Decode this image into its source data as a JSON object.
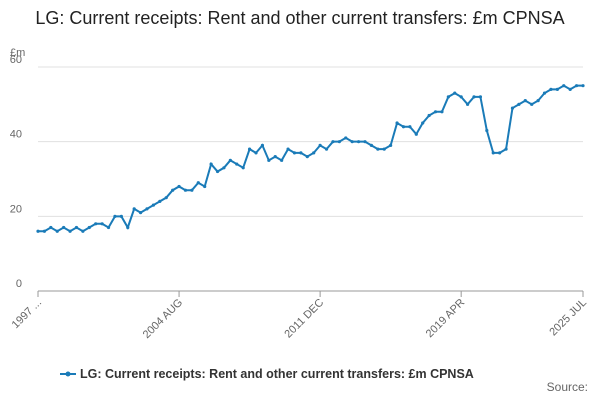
{
  "chart_data": {
    "type": "line",
    "title": "LG: Current receipts: Rent and other current transfers: £m CPNSA",
    "y_label": "£m",
    "source_label": "Source:",
    "categories": [
      "1997 ...",
      null,
      null,
      null,
      null,
      null,
      null,
      null,
      null,
      null,
      null,
      null,
      null,
      null,
      null,
      null,
      null,
      null,
      null,
      null,
      null,
      null,
      "2004 AUG",
      null,
      null,
      null,
      null,
      null,
      null,
      null,
      null,
      null,
      null,
      null,
      null,
      null,
      null,
      null,
      null,
      null,
      null,
      null,
      null,
      null,
      "2011 DEC",
      null,
      null,
      null,
      null,
      null,
      null,
      null,
      null,
      null,
      null,
      null,
      null,
      null,
      null,
      null,
      null,
      null,
      null,
      null,
      null,
      null,
      "2019 APR",
      null,
      null,
      null,
      null,
      null,
      null,
      null,
      null,
      null,
      null,
      null,
      null,
      null,
      null,
      null,
      null,
      null,
      null,
      "2025 JUL"
    ],
    "series": [
      {
        "name": "LG: Current receipts: Rent and other current transfers: £m CPNSA",
        "color": "#1a7bb8",
        "values": [
          16,
          16,
          17,
          16,
          17,
          16,
          17,
          16,
          17,
          18,
          18,
          17,
          20,
          20,
          17,
          22,
          21,
          22,
          23,
          24,
          25,
          27,
          28,
          27,
          27,
          29,
          28,
          34,
          32,
          33,
          35,
          34,
          33,
          38,
          37,
          39,
          35,
          36,
          35,
          38,
          37,
          37,
          36,
          37,
          39,
          38,
          40,
          40,
          41,
          40,
          40,
          40,
          39,
          38,
          38,
          39,
          45,
          44,
          44,
          42,
          45,
          47,
          48,
          48,
          52,
          53,
          52,
          50,
          52,
          52,
          43,
          37,
          37,
          38,
          49,
          50,
          51,
          50,
          51,
          53,
          54,
          54,
          55,
          54,
          55,
          55
        ]
      }
    ],
    "ylim": [
      0,
      60
    ],
    "yticks": [
      0,
      20,
      40,
      60
    ],
    "grid": true
  }
}
